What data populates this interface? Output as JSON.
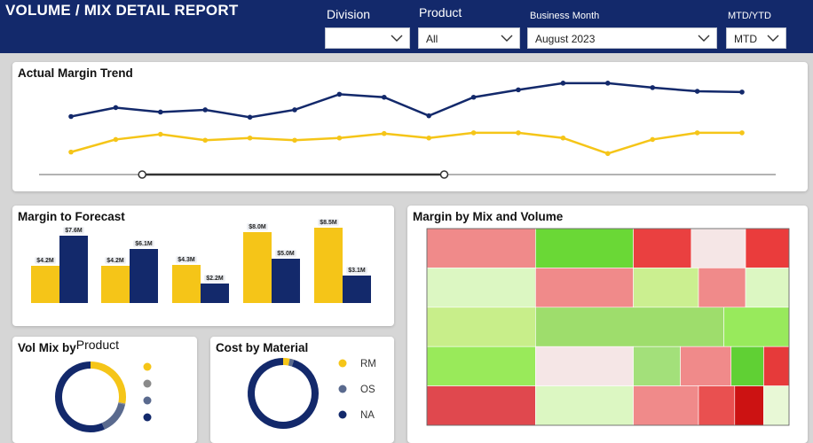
{
  "header": {
    "title": "VOLUME / MIX DETAIL REPORT",
    "filters": [
      {
        "label": "Division",
        "value": ""
      },
      {
        "label": "Product",
        "value": "All"
      },
      {
        "label": "Business Month",
        "value": "August 2023"
      },
      {
        "label": "MTD/YTD",
        "value": "MTD"
      }
    ]
  },
  "colors": {
    "navy": "#13296b",
    "yellow": "#f5c518",
    "grey": "#8a8a8a",
    "slate": "#5a6a8e"
  },
  "actual_margin_trend": {
    "title": "Actual Margin Trend",
    "chart_data": {
      "type": "line",
      "series": [
        {
          "values": [
            58,
            70,
            64,
            67,
            57,
            67,
            88,
            84,
            59,
            84,
            94,
            103,
            103,
            97,
            92,
            91
          ]
        },
        {
          "values": [
            10,
            27,
            34,
            26,
            29,
            26,
            29,
            35,
            29,
            36,
            36,
            29,
            8,
            27,
            36,
            36
          ]
        }
      ],
      "ylim": [
        0,
        110
      ],
      "range_slider": {
        "start": 0.14,
        "end": 0.55
      }
    }
  },
  "margin_to_forecast": {
    "title": "Margin to Forecast",
    "chart_data": {
      "type": "bar",
      "series": [
        {
          "values": [
            4.2,
            4.2,
            4.3,
            8.0,
            8.5
          ],
          "labels": [
            "$4.2M",
            "$4.2M",
            "$4.3M",
            "$8.0M",
            "$8.5M"
          ]
        },
        {
          "values": [
            7.6,
            6.1,
            2.2,
            5.0,
            3.1
          ],
          "labels": [
            "$7.6M",
            "$6.1M",
            "$2.2M",
            "$5.0M",
            "$3.1M"
          ]
        }
      ],
      "ylim": [
        0,
        9
      ]
    }
  },
  "margin_by_mix_and_volume": {
    "title": "Margin by Mix and Volume",
    "chart_data": {
      "type": "heatmap",
      "rows": [
        [
          {
            "w": 0.3,
            "c": "#f08a8a"
          },
          {
            "w": 0.27,
            "c": "#6ad836"
          },
          {
            "w": 0.16,
            "c": "#ea4040"
          },
          {
            "w": 0.15,
            "c": "#f5e6e6"
          },
          {
            "w": 0.12,
            "c": "#ea3c3c"
          }
        ],
        [
          {
            "w": 0.3,
            "c": "#dcf7c2"
          },
          {
            "w": 0.27,
            "c": "#f08a8a"
          },
          {
            "w": 0.18,
            "c": "#cbef90"
          },
          {
            "w": 0.13,
            "c": "#f08a8a"
          },
          {
            "w": 0.12,
            "c": "#dcf7c2"
          }
        ],
        [
          {
            "w": 0.3,
            "c": "#c8ee8a"
          },
          {
            "w": 0.52,
            "c": "#9edd6c"
          },
          {
            "w": 0.18,
            "c": "#98ea5c"
          }
        ],
        [
          {
            "w": 0.3,
            "c": "#99ea5a"
          },
          {
            "w": 0.27,
            "c": "#f5e6e6"
          },
          {
            "w": 0.13,
            "c": "#a3e07a"
          },
          {
            "w": 0.14,
            "c": "#f08a8a"
          },
          {
            "w": 0.09,
            "c": "#60d034"
          },
          {
            "w": 0.07,
            "c": "#e63a3a"
          }
        ],
        [
          {
            "w": 0.3,
            "c": "#e0484e"
          },
          {
            "w": 0.27,
            "c": "#dcf7c2"
          },
          {
            "w": 0.18,
            "c": "#f08a8a"
          },
          {
            "w": 0.1,
            "c": "#e95050"
          },
          {
            "w": 0.08,
            "c": "#cc1212"
          },
          {
            "w": 0.07,
            "c": "#e8f8d6"
          }
        ]
      ]
    }
  },
  "vol_mix_by_product": {
    "title_part1": "Vol Mix by",
    "title_part2": "Product",
    "chart_data": {
      "type": "pie",
      "slices": [
        {
          "value": 28,
          "color": "#f5c518"
        },
        {
          "value": 0.5,
          "color": "#8a8a8a"
        },
        {
          "value": 15,
          "color": "#5a6a8e"
        },
        {
          "value": 56.5,
          "color": "#13296b"
        }
      ]
    },
    "legend": [
      {
        "name": "",
        "color": "#f5c518"
      },
      {
        "name": "",
        "color": "#8a8a8a"
      },
      {
        "name": "",
        "color": "#5a6a8e"
      },
      {
        "name": "",
        "color": "#13296b"
      }
    ]
  },
  "cost_by_material": {
    "title": "Cost by Material",
    "chart_data": {
      "type": "pie",
      "slices": [
        {
          "value": 3,
          "color": "#f5c518"
        },
        {
          "value": 2,
          "color": "#5a6a8e"
        },
        {
          "value": 95,
          "color": "#13296b"
        }
      ]
    },
    "legend": [
      {
        "name": "RM",
        "color": "#f5c518"
      },
      {
        "name": "OS",
        "color": "#5a6a8e"
      },
      {
        "name": "NA",
        "color": "#13296b"
      }
    ]
  }
}
